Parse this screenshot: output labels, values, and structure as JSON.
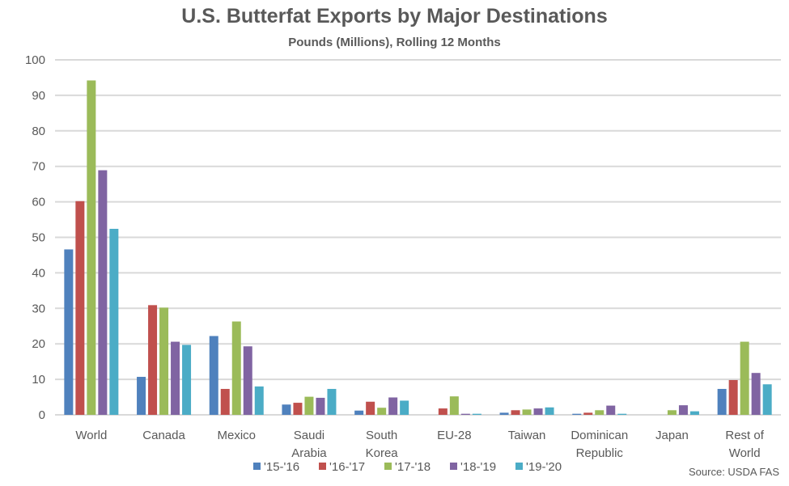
{
  "chart_data": {
    "type": "bar",
    "title": "U.S. Butterfat Exports by Major Destinations",
    "subtitle": "Pounds (Millions), Rolling 12 Months",
    "xlabel": "",
    "ylabel": "",
    "ylim": [
      0,
      100
    ],
    "yticks": [
      0,
      10,
      20,
      30,
      40,
      50,
      60,
      70,
      80,
      90,
      100
    ],
    "grid": true,
    "legend_position": "bottom",
    "categories": [
      [
        "World"
      ],
      [
        "Canada"
      ],
      [
        "Mexico"
      ],
      [
        "Saudi",
        "Arabia"
      ],
      [
        "South",
        "Korea"
      ],
      [
        "EU-28"
      ],
      [
        "Taiwan"
      ],
      [
        "Dominican",
        "Republic"
      ],
      [
        "Japan"
      ],
      [
        "Rest of",
        "World"
      ]
    ],
    "series": [
      {
        "name": "'15-'16",
        "color": "#4F81BD",
        "values": [
          46.6,
          10.7,
          22.2,
          2.9,
          1.2,
          0.0,
          0.6,
          0.3,
          0.0,
          7.3
        ]
      },
      {
        "name": "'16-'17",
        "color": "#C0504D",
        "values": [
          60.2,
          30.9,
          7.3,
          3.4,
          3.7,
          1.8,
          1.3,
          0.6,
          0.0,
          9.8
        ]
      },
      {
        "name": "'17-'18",
        "color": "#9BBB59",
        "values": [
          94.2,
          30.2,
          26.3,
          5.1,
          2.0,
          5.2,
          1.5,
          1.3,
          1.3,
          20.6
        ]
      },
      {
        "name": "'18-'19",
        "color": "#8064A2",
        "values": [
          68.9,
          20.6,
          19.3,
          4.8,
          4.9,
          0.3,
          1.8,
          2.6,
          2.7,
          11.8
        ]
      },
      {
        "name": "'19-'20",
        "color": "#4BACC6",
        "values": [
          52.4,
          19.7,
          8.0,
          7.3,
          4.0,
          0.3,
          2.1,
          0.3,
          1.0,
          8.6
        ]
      }
    ],
    "source": "Source: USDA FAS"
  }
}
